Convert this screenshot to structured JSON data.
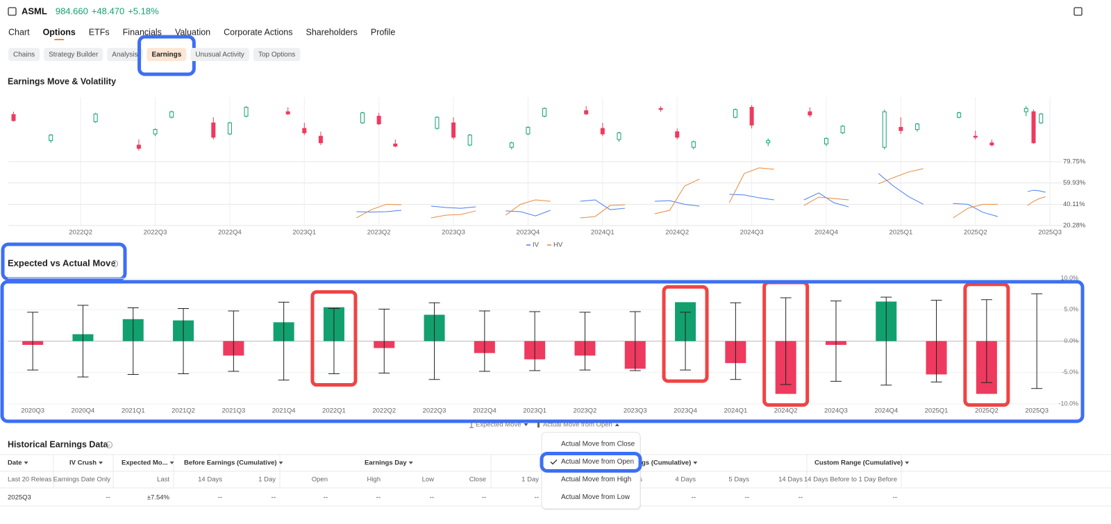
{
  "header": {
    "symbol": "ASML",
    "price": "984.660",
    "change": "+48.470",
    "change_pct": "+5.18%"
  },
  "nav": {
    "tabs": [
      "Chart",
      "Options",
      "ETFs",
      "Financials",
      "Valuation",
      "Corporate Actions",
      "Shareholders",
      "Profile"
    ],
    "active": 1
  },
  "subnav": {
    "tabs": [
      "Chains",
      "Strategy Builder",
      "Analysis",
      "Earnings",
      "Unusual Activity",
      "Top Options"
    ],
    "active": 3
  },
  "chart_data": [
    {
      "type": "candlestick",
      "title": "Earnings Move & Volatility",
      "candles": {
        "x": [
          -0.9,
          -0.4,
          0.2,
          0.78,
          1,
          1.22,
          1.78,
          2,
          2.22,
          2.78,
          3,
          3.22,
          3.78,
          4,
          4.22,
          4.78,
          5,
          5.22,
          5.78,
          6,
          6.22,
          6.78,
          7,
          7.22,
          7.78,
          8,
          8.22,
          8.78,
          9,
          9.22,
          9.78,
          10,
          10.22,
          10.78,
          11,
          11.22,
          11.78,
          12,
          12.22,
          12.68,
          12.78,
          12.88
        ],
        "open": [
          75,
          28,
          62,
          20,
          40,
          70,
          60,
          40,
          72,
          80,
          50,
          36,
          60,
          72,
          22,
          50,
          60,
          20,
          16,
          40,
          72,
          82,
          50,
          30,
          86,
          44,
          16,
          70,
          88,
          24,
          80,
          22,
          42,
          16,
          52,
          48,
          70,
          36,
          24,
          80,
          80,
          60
        ],
        "high": [
          80,
          40,
          78,
          30,
          50,
          82,
          70,
          62,
          90,
          88,
          60,
          44,
          80,
          78,
          30,
          72,
          70,
          40,
          26,
          54,
          88,
          90,
          60,
          44,
          90,
          50,
          28,
          86,
          92,
          32,
          88,
          34,
          56,
          84,
          70,
          60,
          80,
          46,
          30,
          90,
          84,
          78
        ],
        "low": [
          62,
          24,
          60,
          10,
          36,
          68,
          30,
          38,
          70,
          74,
          38,
          20,
          58,
          56,
          16,
          48,
          30,
          18,
          12,
          38,
          70,
          74,
          36,
          26,
          80,
          30,
          12,
          68,
          50,
          18,
          70,
          18,
          40,
          12,
          40,
          44,
          68,
          30,
          18,
          72,
          22,
          58
        ],
        "close": [
          64,
          38,
          76,
          14,
          48,
          80,
          34,
          60,
          88,
          76,
          42,
          24,
          78,
          58,
          18,
          70,
          34,
          38,
          24,
          52,
          86,
          76,
          40,
          42,
          84,
          34,
          26,
          84,
          56,
          28,
          74,
          32,
          54,
          80,
          46,
          58,
          78,
          34,
          20,
          86,
          24,
          76
        ],
        "up_color": "#13a06f",
        "down_color": "#ee3a5f"
      },
      "ylim": [
        0,
        100
      ],
      "xlim": [
        -0.97,
        13.12
      ],
      "xticks": [
        {
          "value": 0,
          "label": "2022Q2"
        },
        {
          "value": 1,
          "label": "2022Q3"
        },
        {
          "value": 2,
          "label": "2022Q4"
        },
        {
          "value": 3,
          "label": "2023Q1"
        },
        {
          "value": 4,
          "label": "2023Q2"
        },
        {
          "value": 5,
          "label": "2023Q3"
        },
        {
          "value": 6,
          "label": "2023Q4"
        },
        {
          "value": 7,
          "label": "2024Q1"
        },
        {
          "value": 8,
          "label": "2024Q2"
        },
        {
          "value": 9,
          "label": "2024Q3"
        },
        {
          "value": 10,
          "label": "2024Q4"
        },
        {
          "value": 11,
          "label": "2025Q1"
        },
        {
          "value": 12,
          "label": "2025Q2"
        },
        {
          "value": 13,
          "label": "2025Q3"
        }
      ],
      "y2lim": [
        20.28,
        79.75
      ],
      "y2ticks": [
        {
          "value": 79.75,
          "label": "79.75%"
        },
        {
          "value": 59.93,
          "label": "59.93%"
        },
        {
          "value": 40.11,
          "label": "40.11%"
        },
        {
          "value": 20.28,
          "label": "20.28%"
        }
      ],
      "x": [
        3.7,
        3.9,
        4.1,
        4.3,
        4.5,
        4.7,
        4.9,
        5.1,
        5.3,
        5.5,
        5.7,
        5.9,
        6.1,
        6.3,
        6.5,
        6.7,
        6.9,
        7.1,
        7.3,
        7.5,
        7.7,
        7.9,
        8.1,
        8.3,
        8.5,
        8.7,
        8.9,
        9.1,
        9.3,
        9.5,
        9.7,
        9.9,
        10.1,
        10.3,
        10.5,
        10.7,
        10.9,
        11.1,
        11.3,
        11.5,
        11.7,
        11.9,
        12.1,
        12.3,
        12.5,
        12.7,
        12.78,
        12.86,
        12.94
      ],
      "series": [
        {
          "name": "IV",
          "color": "#4c7cf0",
          "axis": "y2",
          "values": [
            33.2,
            32.9,
            33.2,
            34.5,
            null,
            38.4,
            37.1,
            36.4,
            37.7,
            null,
            33.9,
            33.2,
            29.3,
            34.5,
            null,
            42.9,
            44.2,
            35.1,
            36.4,
            null,
            42.9,
            43.5,
            40.1,
            38.4,
            null,
            49.4,
            48.8,
            46.1,
            44.2,
            null,
            44.2,
            50.7,
            41.6,
            37.7,
            null,
            68.8,
            57.1,
            47.4,
            40.1,
            null,
            40.8,
            40.1,
            32.6,
            28.7,
            null,
            52.0,
            53.2,
            52.6,
            51.3
          ]
        },
        {
          "name": "HV",
          "color": "#e8893a",
          "axis": "y2",
          "values": [
            27.4,
            35.1,
            40.1,
            39.7,
            null,
            27.4,
            30.0,
            30.6,
            33.9,
            null,
            30.0,
            40.1,
            44.2,
            42.9,
            null,
            27.4,
            28.7,
            39.0,
            39.7,
            null,
            31.3,
            34.5,
            57.1,
            63.6,
            null,
            41.6,
            68.8,
            74.0,
            72.7,
            null,
            39.0,
            46.8,
            45.5,
            44.2,
            null,
            59.2,
            64.9,
            70.1,
            73.3,
            null,
            27.4,
            36.4,
            40.1,
            40.1,
            null,
            39.0,
            42.9,
            45.5,
            47.0
          ]
        }
      ]
    },
    {
      "type": "bar",
      "title": "Expected vs Actual Move",
      "categories": [
        "2020Q3",
        "2020Q4",
        "2021Q1",
        "2021Q2",
        "2021Q3",
        "2021Q4",
        "2022Q1",
        "2022Q2",
        "2022Q3",
        "2022Q4",
        "2023Q1",
        "2023Q2",
        "2023Q3",
        "2023Q4",
        "2024Q1",
        "2024Q2",
        "2024Q3",
        "2024Q4",
        "2025Q1",
        "2025Q2",
        "2025Q3"
      ],
      "series": [
        {
          "name": "Actual Move from Open",
          "values": [
            -0.6,
            1.1,
            3.5,
            3.3,
            -2.3,
            3.0,
            5.4,
            -1.1,
            4.2,
            -1.9,
            -2.9,
            -2.3,
            -4.4,
            6.2,
            -3.5,
            -8.4,
            -0.6,
            6.3,
            -5.3,
            -8.4,
            null
          ]
        }
      ],
      "error_series": {
        "name": "Expected Move",
        "color": "#222222",
        "values": [
          4.6,
          5.7,
          5.3,
          5.2,
          4.8,
          6.2,
          5.2,
          5.1,
          6.1,
          4.8,
          4.7,
          4.6,
          4.7,
          4.6,
          6.1,
          6.9,
          6.4,
          7.0,
          6.5,
          6.6,
          7.54
        ]
      },
      "positive_color": "#13a06f",
      "negative_color": "#ee3a5f",
      "ylim": [
        -10,
        10
      ],
      "yticks": [
        {
          "value": 10,
          "label": "10.0%"
        },
        {
          "value": 5,
          "label": "5.0%"
        },
        {
          "value": 0,
          "label": "0.0%"
        },
        {
          "value": -5,
          "label": "-5.0%"
        },
        {
          "value": -10,
          "label": "-10.0%"
        }
      ]
    }
  ],
  "legend_menu": {
    "options": [
      "Actual Move from Close",
      "Actual Move from Open",
      "Actual Move from High",
      "Actual Move from Low"
    ],
    "selected": 1
  },
  "table": {
    "title": "Historical Earnings Data",
    "groups": [
      "Date",
      "IV Crush",
      "Expected Mo...",
      "Before Earnings (Cumulative)",
      "Earnings Day",
      "gs (Cumulative)",
      "Custom Range (Cumulative)"
    ],
    "columns": [
      "Last 20 Releas",
      "Earnings Date Only",
      "Last",
      "14 Days",
      "1 Day",
      "Open",
      "High",
      "Low",
      "Close",
      "1 Day",
      "ys",
      "4 Days",
      "5 Days",
      "14 Days",
      "14 Days Before to 1 Day Before"
    ],
    "rows": [
      [
        "2025Q3",
        "--",
        "±7.54%",
        "--",
        "--",
        "--",
        "--",
        "--",
        "--",
        "--",
        "--",
        "--",
        "--",
        "--"
      ]
    ]
  }
}
